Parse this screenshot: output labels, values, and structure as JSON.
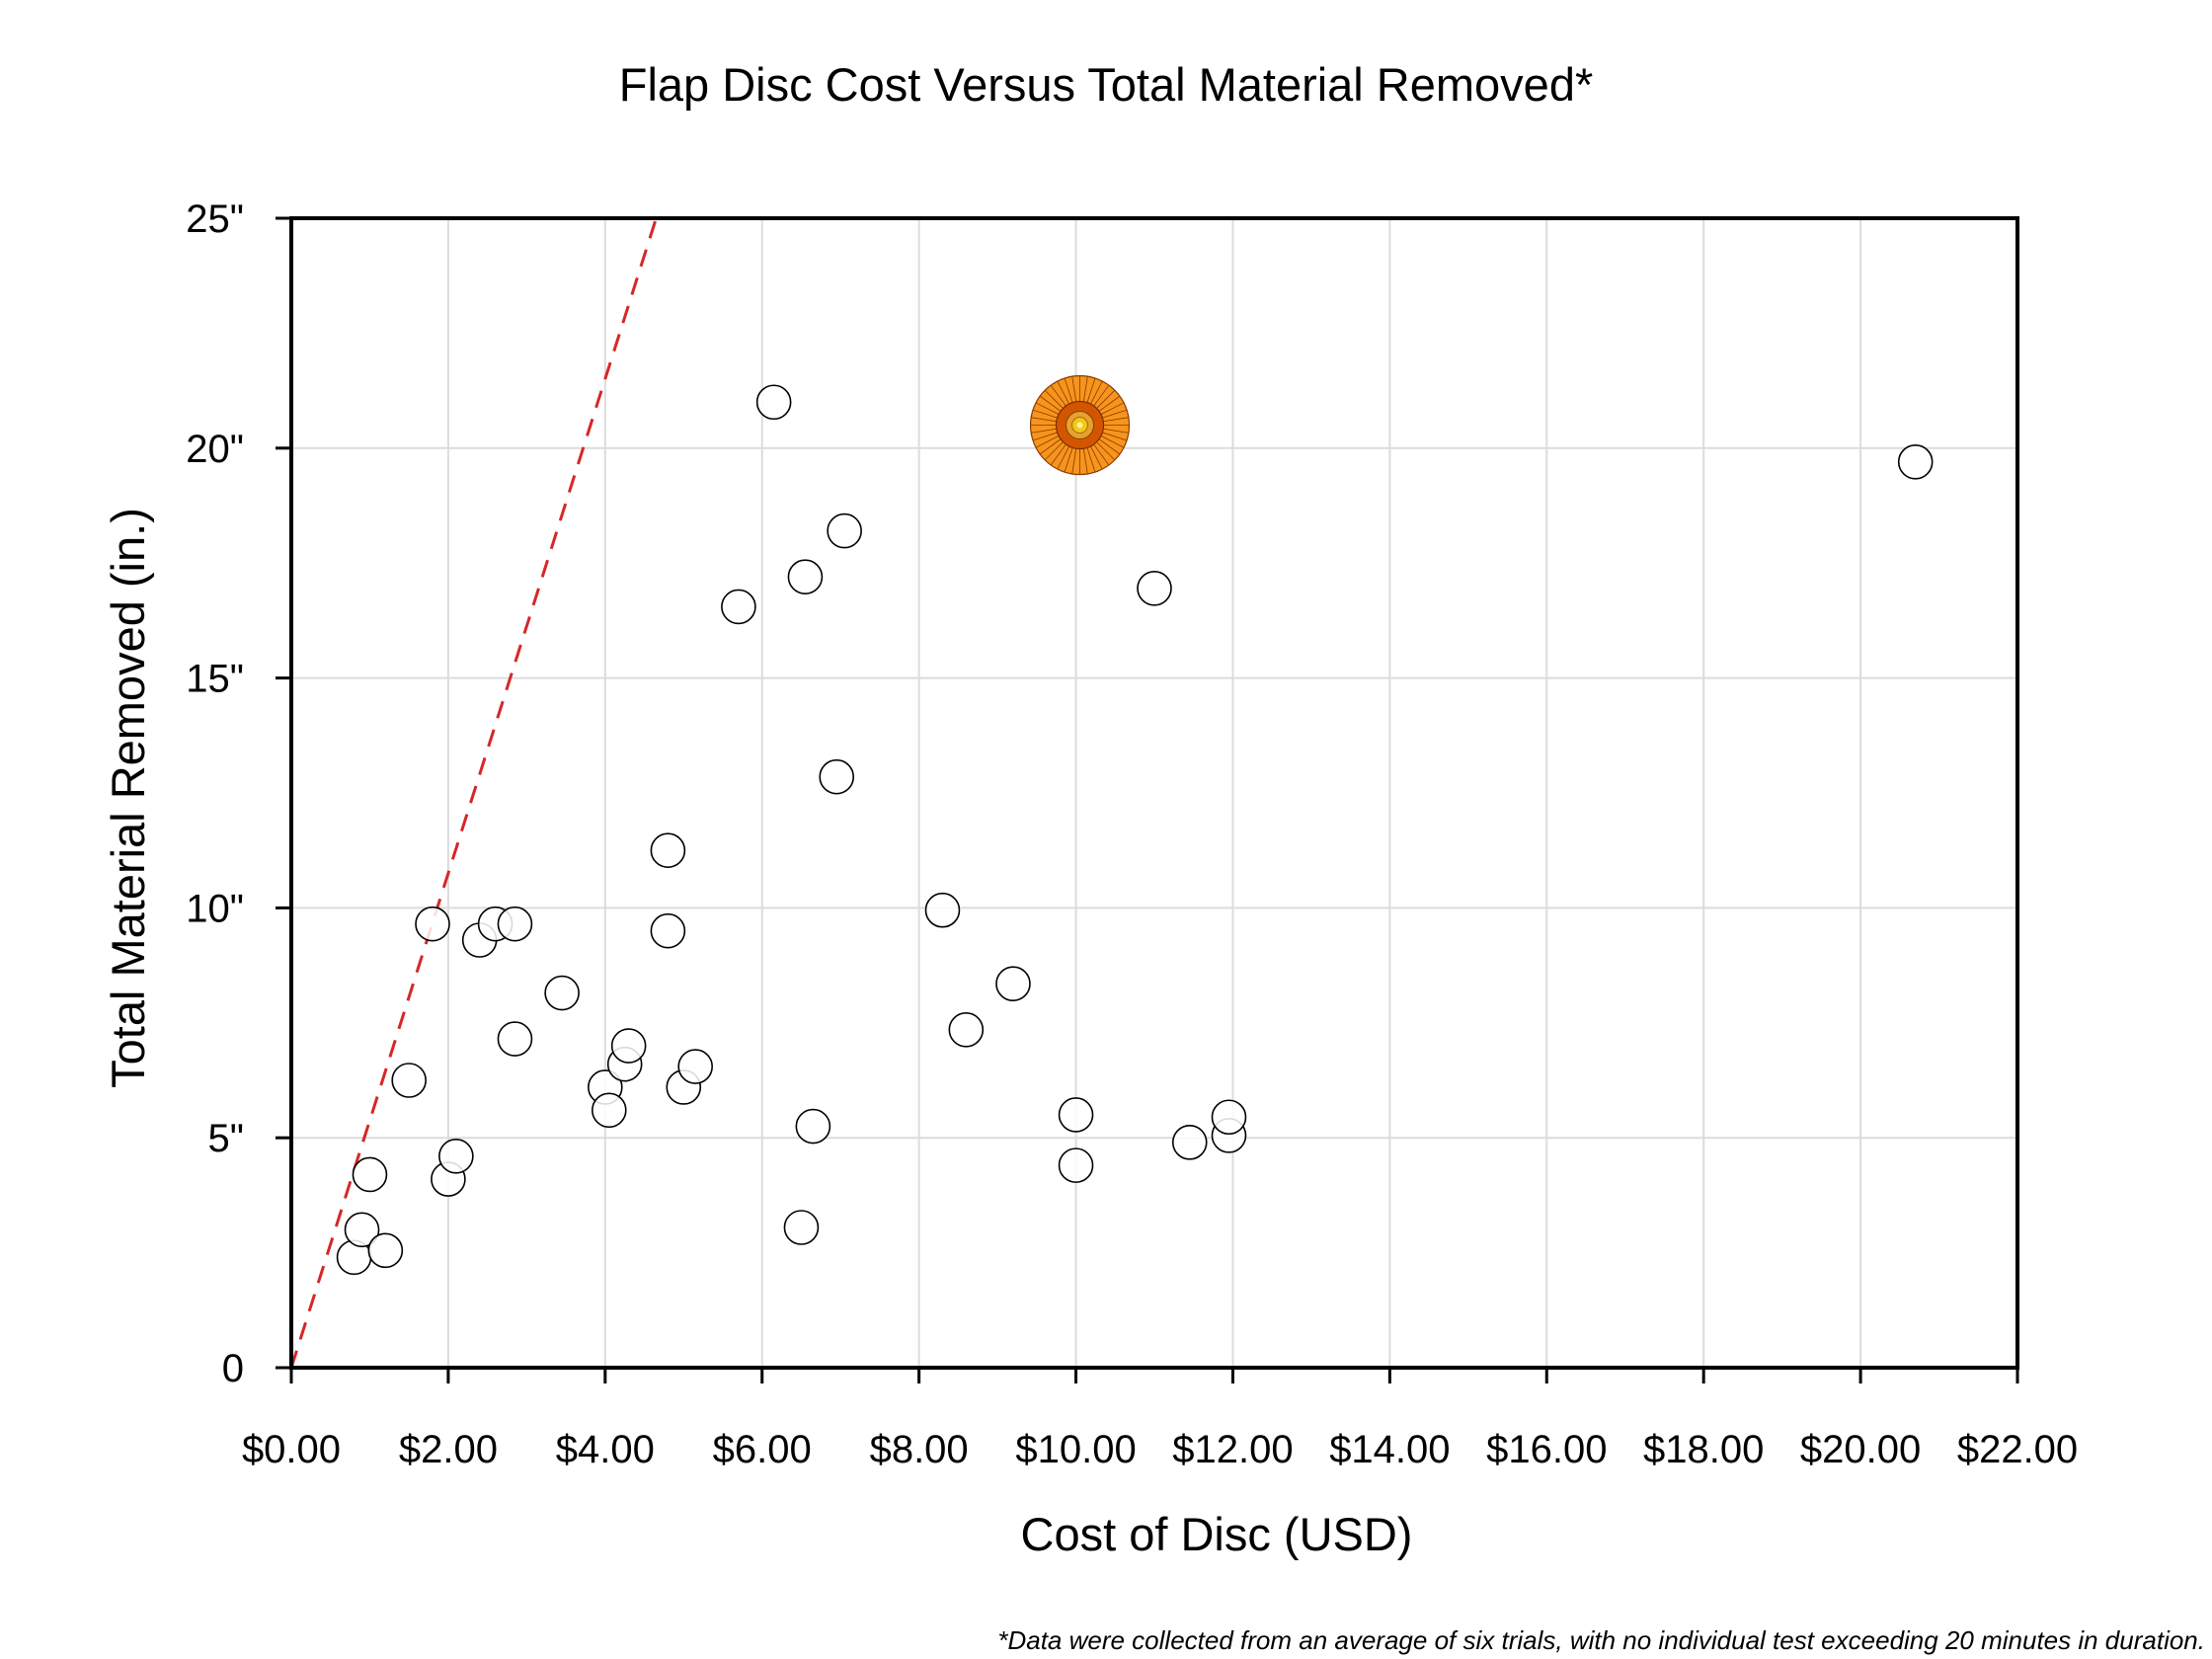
{
  "chart_data": {
    "type": "scatter",
    "title": "Flap Disc Cost Versus Total Material Removed*",
    "xlabel": "Cost of Disc (USD)",
    "ylabel": "Total Material Removed (in.)",
    "footnote": "*Data were collected from an average of six trials, with no individual test exceeding 20 minutes in duration.",
    "xlim": [
      0,
      22
    ],
    "ylim": [
      0,
      25
    ],
    "x_ticks": [
      0,
      2,
      4,
      6,
      8,
      10,
      12,
      14,
      16,
      18,
      20,
      22
    ],
    "x_tick_labels": [
      "$0.00",
      "$2.00",
      "$4.00",
      "$6.00",
      "$8.00",
      "$10.00",
      "$12.00",
      "$14.00",
      "$16.00",
      "$18.00",
      "$20.00",
      "$22.00"
    ],
    "y_ticks": [
      0,
      5,
      10,
      15,
      20,
      25
    ],
    "y_tick_labels": [
      "0",
      "5\"",
      "10\"",
      "15\"",
      "20\"",
      "25\""
    ],
    "grid": true,
    "colors": {
      "marker_stroke": "#000000",
      "gridline": "#dcdcdc",
      "reference_line": "#d62728",
      "highlight_outer": "#f7941d",
      "highlight_inner": "#d45500",
      "highlight_center": "#f5c518"
    },
    "series": [
      {
        "marker": "open-circle",
        "x": [
          0.8,
          0.9,
          1.0,
          1.2,
          1.5,
          1.8,
          2.0,
          2.1,
          2.4,
          2.6,
          2.85,
          2.85,
          3.45,
          4.0,
          4.05,
          4.25,
          4.3,
          4.8,
          4.8,
          5.0,
          5.15,
          5.7,
          6.15,
          6.5,
          6.55,
          6.65,
          6.95,
          7.05,
          8.3,
          8.6,
          9.2,
          10.0,
          10.0,
          11.0,
          11.45,
          11.95,
          11.95,
          20.7
        ],
        "y": [
          2.4,
          3.0,
          4.2,
          2.55,
          6.25,
          9.65,
          4.1,
          4.6,
          9.3,
          9.65,
          9.65,
          7.15,
          8.15,
          6.1,
          5.6,
          6.6,
          7.0,
          11.25,
          9.5,
          6.1,
          6.55,
          16.55,
          21.0,
          3.05,
          17.2,
          5.25,
          12.85,
          18.2,
          9.95,
          7.35,
          8.35,
          5.5,
          4.4,
          16.95,
          4.9,
          5.05,
          5.45,
          19.7
        ]
      },
      {
        "marker": "flap-disc-icon",
        "x": [
          10.05
        ],
        "y": [
          20.5
        ]
      }
    ],
    "reference_line": {
      "style": "dashed",
      "x": [
        0,
        4.65
      ],
      "y": [
        0,
        25
      ]
    }
  }
}
